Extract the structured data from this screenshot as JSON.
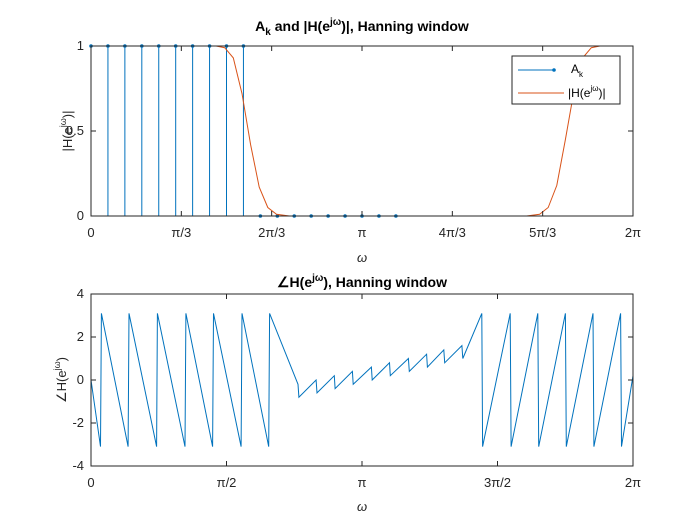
{
  "colors": {
    "stem": "#0072bd",
    "magnitude_curve": "#d95319",
    "phase_curve": "#0072bd",
    "axes": "#262626",
    "background": "#ffffff"
  },
  "chart_data": [
    {
      "type": "line",
      "subtype": "stem+line",
      "title": "A_k and |H(e^{jω})|, Hanning window",
      "title_parts": {
        "main": "A",
        "main_sub": "k",
        "rest": " and |H(e",
        "rest_sup": "jω",
        "tail": ")|, Hanning window"
      },
      "xlabel": "ω",
      "ylabel": "|H(e^{jω})|",
      "xlim": [
        0,
        6.283185307
      ],
      "ylim": [
        0,
        1
      ],
      "x_ticks": [
        0,
        1.047197551,
        2.094395102,
        3.141592654,
        4.188790205,
        5.235987756,
        6.283185307
      ],
      "x_tick_labels": [
        "0",
        "π/3",
        "2π/3",
        "π",
        "4π/3",
        "5π/3",
        "2π"
      ],
      "y_ticks": [
        0,
        0.5,
        1
      ],
      "y_tick_labels": [
        "0",
        "0.5",
        "1"
      ],
      "legend_placement": "top-right",
      "grid": false,
      "series": [
        {
          "name": "A_k",
          "legend_label": "A",
          "legend_sub": "k",
          "kind": "stem",
          "x": [
            0,
            0.19635,
            0.3927,
            0.58905,
            0.7854,
            0.98175,
            1.1781,
            1.37445,
            1.5708,
            1.76715,
            1.9635,
            2.15985,
            2.3562,
            2.55255,
            2.7489,
            2.94525,
            3.1416,
            3.33795,
            3.5343
          ],
          "values": [
            1,
            1,
            1,
            1,
            1,
            1,
            1,
            1,
            1,
            1,
            0,
            0,
            0,
            0,
            0,
            0,
            0,
            0,
            0
          ]
        },
        {
          "name": "|H(e^{jω})|",
          "legend_label": "|H(e",
          "legend_sup": "jω",
          "legend_tail": ")|",
          "kind": "line",
          "x": [
            0,
            1.35,
            1.45,
            1.55,
            1.65,
            1.75,
            1.85,
            1.95,
            2.05,
            2.15,
            2.3,
            5.05,
            5.2,
            5.3,
            5.4,
            5.5,
            5.6,
            5.7,
            5.8,
            5.9,
            6.0,
            6.283185307
          ],
          "values": [
            1,
            1,
            1,
            0.99,
            0.93,
            0.72,
            0.42,
            0.17,
            0.05,
            0.01,
            0,
            0,
            0.01,
            0.05,
            0.18,
            0.45,
            0.74,
            0.93,
            0.99,
            1,
            1,
            1
          ]
        }
      ]
    },
    {
      "type": "line",
      "title": "∠H(e^{jω}), Hanning window",
      "title_parts": {
        "main": "∠H(e",
        "main_sup": "jω",
        "rest": "), Hanning window"
      },
      "xlabel": "ω",
      "ylabel": "∠H(e^{jω})",
      "xlim": [
        0,
        6.283185307
      ],
      "ylim": [
        -4,
        4
      ],
      "x_ticks": [
        0,
        1.570796327,
        3.141592654,
        4.71238898,
        6.283185307
      ],
      "x_tick_labels": [
        "0",
        "π/2",
        "π",
        "3π/2",
        "2π"
      ],
      "y_ticks": [
        -4,
        -2,
        0,
        2,
        4
      ],
      "y_tick_labels": [
        "-4",
        "-2",
        "0",
        "2",
        "4"
      ],
      "grid": false,
      "series": [
        {
          "name": "",
          "kind": "sawtooth",
          "x": [
            0,
            0.11,
            0.12,
            0.43,
            0.44,
            0.76,
            0.77,
            1.09,
            1.1,
            1.41,
            1.42,
            1.74,
            1.75,
            2.06,
            2.07,
            2.4,
            2.41,
            2.61,
            2.62,
            2.82,
            2.83,
            3.03,
            3.04,
            3.25,
            3.26,
            3.46,
            3.47,
            3.68,
            3.69,
            3.89,
            3.9,
            4.09,
            4.1,
            4.3,
            4.31,
            4.53,
            4.54,
            4.86,
            4.87,
            5.18,
            5.19,
            5.5,
            5.51,
            5.82,
            5.83,
            6.14,
            6.15,
            6.283185307
          ],
          "values": [
            0,
            -3.1,
            3.1,
            -3.1,
            3.1,
            -3.1,
            3.1,
            -3.1,
            3.1,
            -3.1,
            3.1,
            -3.1,
            3.1,
            -3.1,
            3.1,
            -0.2,
            -0.8,
            0,
            -0.6,
            0.2,
            -0.4,
            0.4,
            -0.2,
            0.6,
            0,
            0.8,
            0.2,
            1.0,
            0.4,
            1.2,
            0.6,
            1.4,
            0.8,
            1.6,
            1.0,
            3.1,
            -3.1,
            3.1,
            -3.1,
            3.1,
            -3.1,
            3.1,
            -3.1,
            3.1,
            -3.1,
            3.1,
            -3.1,
            0.2
          ]
        }
      ]
    }
  ]
}
